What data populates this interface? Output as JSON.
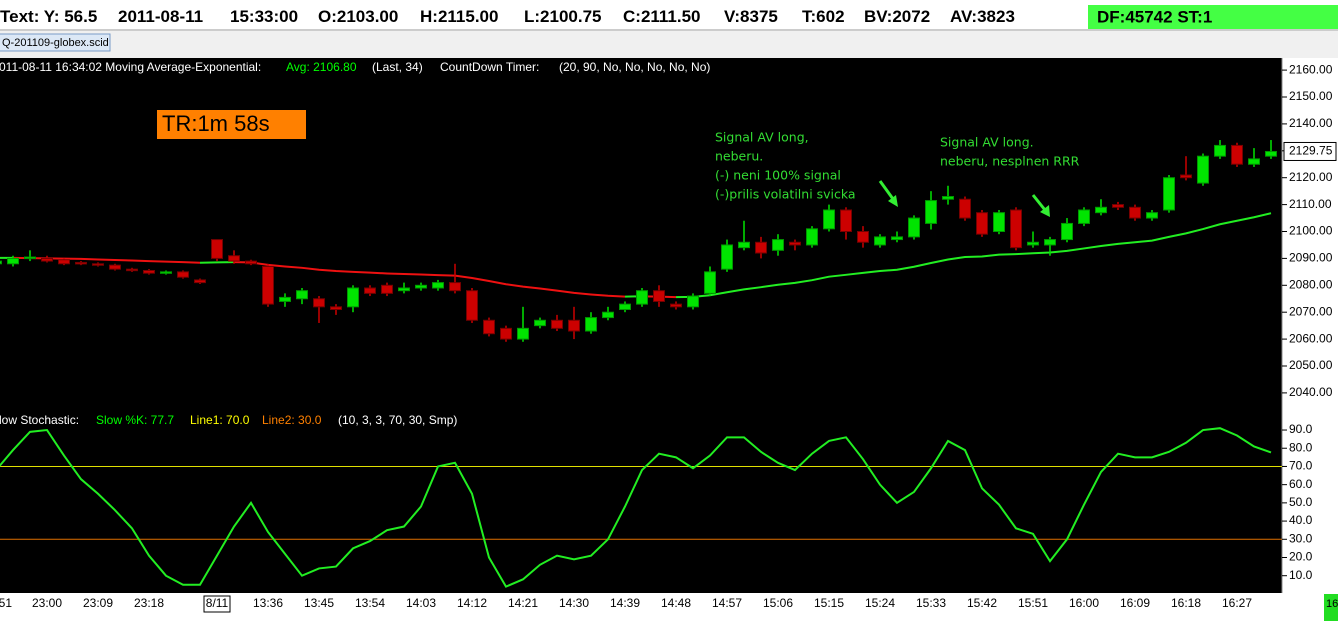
{
  "status_items": [
    "Text: Y: 56.5",
    "2011-08-11",
    "15:33:00",
    "O:2103.00",
    "H:2115.00",
    "L:2100.75",
    "C:2111.50",
    "V:8375",
    "T:602",
    "BV:2072",
    "AV:3823"
  ],
  "status_box": "DF:45742  ST:1",
  "tab": "Q-201109-globex.scid",
  "corner_label": "16",
  "chart_data": [
    {
      "type": "candlestick",
      "legend_items": [
        {
          "text": "011-08-11 16:34:02 Moving Average-Exponential:",
          "color": "#ffffff"
        },
        {
          "text": "Avg: 2106.80",
          "color": "#00ff00"
        },
        {
          "text": "(Last, 34)",
          "color": "#ffffff"
        },
        {
          "text": "CountDown Timer:",
          "color": "#ffffff"
        },
        {
          "text": "(20, 90, No, No, No, No, No)",
          "color": "#ffffff"
        }
      ],
      "timer_label": "TR:1m 58s",
      "annotations": [
        {
          "lines": [
            "Signal AV long,",
            "neberu.",
            "(-) neni 100% signal",
            "(-)prilis volatilni svicka"
          ]
        },
        {
          "lines": [
            "Signal AV long.",
            "neberu, nesplnen RRR"
          ]
        }
      ],
      "up_color": "#00e400",
      "down_color": "#cc0000",
      "open": [
        2088,
        2088,
        2090,
        2090,
        2089.5,
        2088.5,
        2088,
        2087.5,
        2086,
        2085.5,
        2084.5,
        2085,
        2082,
        2097,
        2091,
        2089,
        2087,
        2074,
        2075,
        2075,
        2072,
        2072,
        2079,
        2080,
        2078,
        2079,
        2079,
        2081,
        2078,
        2067,
        2064,
        2060,
        2065,
        2067,
        2067,
        2063,
        2068,
        2071,
        2073,
        2078,
        2073,
        2072,
        2077,
        2086,
        2094,
        2096,
        2093,
        2096,
        2095,
        2101,
        2108,
        2100,
        2095,
        2097,
        2098,
        2103,
        2112,
        2112,
        2107,
        2100,
        2108,
        2095,
        2095,
        2097,
        2103,
        2107,
        2110,
        2109,
        2105,
        2108,
        2121,
        2118,
        2128,
        2132,
        2125,
        2128
      ],
      "high": [
        2090,
        2091,
        2093,
        2091,
        2090,
        2089,
        2088.5,
        2088,
        2086.5,
        2086,
        2085.5,
        2085.5,
        2082.5,
        2097,
        2093,
        2089.5,
        2088,
        2077,
        2079,
        2076,
        2073,
        2080,
        2080,
        2081,
        2081,
        2081,
        2082,
        2088,
        2079,
        2068,
        2065,
        2072,
        2068,
        2069,
        2072,
        2070,
        2072,
        2074,
        2079,
        2080,
        2074,
        2077,
        2087,
        2097,
        2104,
        2098,
        2099,
        2097,
        2102,
        2110,
        2109,
        2102,
        2099,
        2100,
        2106,
        2115,
        2117,
        2113,
        2108,
        2108,
        2109,
        2100,
        2098,
        2105,
        2109,
        2112,
        2111,
        2110,
        2108,
        2121,
        2128,
        2129,
        2134,
        2133,
        2131,
        2134
      ],
      "low": [
        2087,
        2087,
        2089,
        2088.5,
        2087.5,
        2087.5,
        2087,
        2085.5,
        2085,
        2084,
        2084,
        2082.5,
        2080.5,
        2089,
        2088,
        2087.5,
        2072,
        2072,
        2073,
        2066,
        2069,
        2070,
        2076,
        2076,
        2077,
        2078,
        2078,
        2077,
        2066,
        2061,
        2059,
        2059,
        2064,
        2063,
        2060,
        2062,
        2067,
        2070,
        2072,
        2072,
        2071,
        2071,
        2076,
        2085,
        2093,
        2090,
        2091,
        2093,
        2094,
        2100,
        2097,
        2094,
        2094,
        2096,
        2097,
        2100.75,
        2110,
        2104,
        2098,
        2099,
        2093,
        2094,
        2091,
        2096,
        2102,
        2106,
        2108,
        2104,
        2104,
        2107,
        2119,
        2117,
        2127,
        2124,
        2124,
        2127
      ],
      "close": [
        2089,
        2090,
        2090.5,
        2089,
        2088,
        2088,
        2087.5,
        2086,
        2085.5,
        2084.5,
        2085,
        2083,
        2081,
        2090,
        2089,
        2088,
        2073,
        2075.5,
        2078,
        2072,
        2071,
        2079,
        2077,
        2077,
        2079,
        2080,
        2081,
        2078,
        2067,
        2062,
        2060,
        2064,
        2067,
        2064,
        2063,
        2068,
        2070,
        2073,
        2078,
        2074,
        2072,
        2076,
        2085,
        2095,
        2096,
        2092,
        2097,
        2095,
        2101,
        2108,
        2100,
        2096,
        2098,
        2098,
        2105,
        2111.5,
        2113,
        2105,
        2099,
        2107,
        2094,
        2096,
        2097,
        2103,
        2108,
        2109,
        2109,
        2105,
        2107,
        2120,
        2120,
        2128,
        2132,
        2125,
        2127,
        2129.75
      ],
      "ema": {
        "rise_color": "#22ee22",
        "fall_color": "#ee1111",
        "values": [
          2090.2,
          2090.2,
          2090.1,
          2090,
          2089.9,
          2089.8,
          2089.6,
          2089.4,
          2089.2,
          2089,
          2088.8,
          2088.6,
          2088.4,
          2088.5,
          2088.6,
          2088.5,
          2087.6,
          2087,
          2086.5,
          2085.8,
          2085.3,
          2085,
          2084.7,
          2084.4,
          2084.2,
          2084,
          2083.8,
          2083.6,
          2082.7,
          2081.6,
          2080.4,
          2079.5,
          2078.8,
          2078,
          2077.2,
          2076.6,
          2076.1,
          2075.8,
          2075.9,
          2075.8,
          2075.6,
          2075.7,
          2076.3,
          2077.4,
          2078.5,
          2079.3,
          2080.2,
          2080.9,
          2081.9,
          2083.2,
          2083.9,
          2084.6,
          2085.3,
          2085.8,
          2086.9,
          2088.3,
          2089.6,
          2090.5,
          2090.7,
          2091.4,
          2091.6,
          2091.9,
          2092.2,
          2092.8,
          2093.7,
          2094.6,
          2095.4,
          2096,
          2096.6,
          2098,
          2099.3,
          2100.9,
          2102.7,
          2104,
          2105.3,
          2106.8
        ]
      },
      "ylim": [
        2035.5,
        2164.5
      ],
      "yticks": [
        {
          "value": 2040,
          "label": "2040.00"
        },
        {
          "value": 2050,
          "label": "2050.00"
        },
        {
          "value": 2060,
          "label": "2060.00"
        },
        {
          "value": 2070,
          "label": "2070.00"
        },
        {
          "value": 2080,
          "label": "2080.00"
        },
        {
          "value": 2090,
          "label": "2090.00"
        },
        {
          "value": 2100,
          "label": "2100.00"
        },
        {
          "value": 2110,
          "label": "2110.00"
        },
        {
          "value": 2120,
          "label": "2120.00"
        },
        {
          "value": 2130,
          "label": "2130.00"
        },
        {
          "value": 2140,
          "label": "2140.00"
        },
        {
          "value": 2150,
          "label": "2150.00"
        },
        {
          "value": 2160,
          "label": "2160.00"
        }
      ]
    },
    {
      "type": "line",
      "legend_items": [
        {
          "text": "low Stochastic:",
          "color": "#ffffff"
        },
        {
          "text": "Slow %K: 77.7",
          "color": "#00ff00"
        },
        {
          "text": "Line1: 70.0",
          "color": "#ffff00"
        },
        {
          "text": "Line2: 30.0",
          "color": "#ff8000"
        },
        {
          "text": "(10, 3, 3, 70, 30, Smp)",
          "color": "#ffffff"
        }
      ],
      "categories": [
        "51",
        null,
        null,
        "23:00",
        null,
        null,
        "23:09",
        null,
        null,
        "23:18",
        null,
        null,
        null,
        "8/11",
        null,
        null,
        "13:36",
        null,
        null,
        "13:45",
        null,
        null,
        "13:54",
        null,
        null,
        "14:03",
        null,
        null,
        "14:12",
        null,
        null,
        "14:21",
        null,
        null,
        "14:30",
        null,
        null,
        "14:39",
        null,
        null,
        "14:48",
        null,
        null,
        "14:57",
        null,
        null,
        "15:06",
        null,
        null,
        "15:15",
        null,
        null,
        "15:24",
        null,
        null,
        "15:33",
        null,
        null,
        "15:42",
        null,
        null,
        "15:51",
        null,
        null,
        "16:00",
        null,
        null,
        "16:09",
        null,
        null,
        "16:18",
        null,
        null,
        "16:27",
        null,
        null
      ],
      "series": [
        {
          "color": "#22ee22",
          "values": [
            68,
            79,
            89,
            90,
            76,
            63,
            55,
            46,
            36,
            21,
            10,
            5,
            5,
            21,
            37,
            50,
            34,
            22,
            10,
            14,
            15,
            25,
            29,
            35,
            37,
            48,
            70,
            72,
            55,
            20,
            4,
            8,
            16,
            21,
            19,
            21,
            30,
            48,
            68,
            77,
            75,
            69,
            76,
            86,
            86,
            78,
            72,
            68,
            77,
            84,
            86,
            74,
            60,
            50,
            56,
            69,
            84,
            79,
            58,
            49,
            36,
            33,
            18,
            30,
            49,
            67,
            77,
            75,
            75,
            78,
            83,
            90,
            91,
            87,
            81,
            77.7
          ]
        }
      ],
      "hlines": [
        {
          "value": 70,
          "color": "#e0e000"
        },
        {
          "value": 30,
          "color": "#e07000"
        }
      ],
      "ylim": [
        0.5,
        101
      ],
      "yticks": [
        {
          "value": 10,
          "label": "10.0"
        },
        {
          "value": 20,
          "label": "20.0"
        },
        {
          "value": 30,
          "label": "30.0"
        },
        {
          "value": 40,
          "label": "40.0"
        },
        {
          "value": 50,
          "label": "50.0"
        },
        {
          "value": 60,
          "label": "60.0"
        },
        {
          "value": 70,
          "label": "70.0"
        },
        {
          "value": 80,
          "label": "80.0"
        },
        {
          "value": 90,
          "label": "90.0"
        }
      ]
    }
  ]
}
